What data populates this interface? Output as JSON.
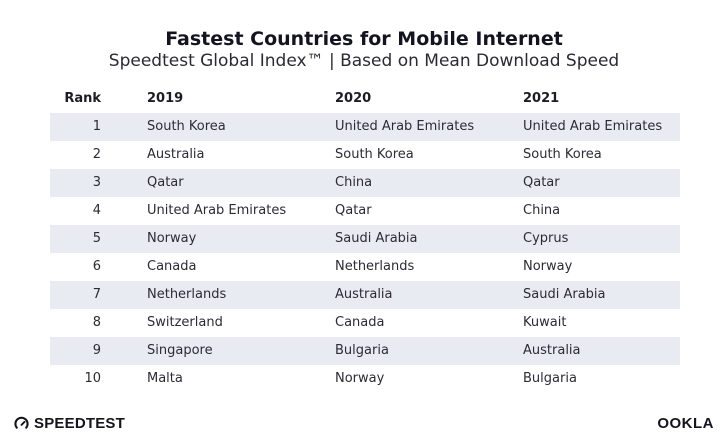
{
  "header": {
    "title": "Fastest Countries for Mobile Internet",
    "subtitle": "Speedtest Global Index™ | Based on Mean Download Speed"
  },
  "table": {
    "columns": [
      "Rank",
      "2019",
      "2020",
      "2021"
    ],
    "rows": [
      {
        "rank": "1",
        "y2019": "South Korea",
        "y2020": "United Arab Emirates",
        "y2021": "United Arab Emirates"
      },
      {
        "rank": "2",
        "y2019": "Australia",
        "y2020": "South Korea",
        "y2021": "South Korea"
      },
      {
        "rank": "3",
        "y2019": "Qatar",
        "y2020": "China",
        "y2021": "Qatar"
      },
      {
        "rank": "4",
        "y2019": "United Arab Emirates",
        "y2020": "Qatar",
        "y2021": "China"
      },
      {
        "rank": "5",
        "y2019": "Norway",
        "y2020": "Saudi Arabia",
        "y2021": "Cyprus"
      },
      {
        "rank": "6",
        "y2019": "Canada",
        "y2020": "Netherlands",
        "y2021": "Norway"
      },
      {
        "rank": "7",
        "y2019": "Netherlands",
        "y2020": "Australia",
        "y2021": "Saudi Arabia"
      },
      {
        "rank": "8",
        "y2019": "Switzerland",
        "y2020": "Canada",
        "y2021": "Kuwait"
      },
      {
        "rank": "9",
        "y2019": "Singapore",
        "y2020": "Bulgaria",
        "y2021": "Australia"
      },
      {
        "rank": "10",
        "y2019": "Malta",
        "y2020": "Norway",
        "y2021": "Bulgaria"
      }
    ]
  },
  "footer": {
    "left_brand": "SPEEDTEST",
    "right_brand": "OOKLA"
  },
  "colors": {
    "row_shade": "#e9ebf3",
    "text": "#1c1c24"
  },
  "icons": {
    "left_logo": "speedtest-gauge-icon"
  }
}
